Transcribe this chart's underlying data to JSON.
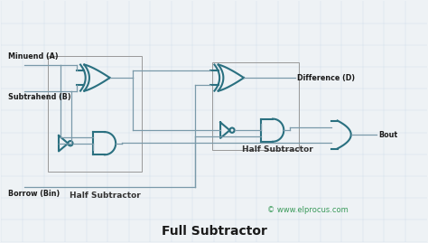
{
  "title": "Full Subtractor",
  "bg_color": "#eef2f5",
  "gate_color": "#2a7080",
  "line_color": "#7a9aaa",
  "text_color": "#1a1a1a",
  "watermark_color": "#3a9a5a",
  "watermark": "© www.elprocus.com",
  "labels": {
    "minuend": "Minuend (A)",
    "subtrahend": "Subtrahend (B)",
    "borrow": "Borrow (Bin)",
    "difference": "Difference (D)",
    "bout": "Bout",
    "hs1": "Half Subtractor",
    "hs2": "Half Subtractor"
  },
  "figsize": [
    4.74,
    2.69
  ],
  "dpi": 100
}
